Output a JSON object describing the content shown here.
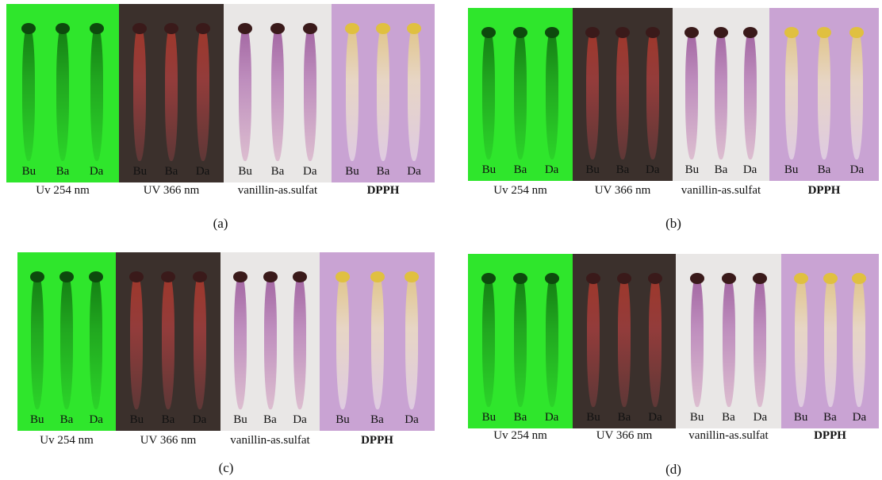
{
  "panels": [
    {
      "label": "(a)",
      "plates": [
        {
          "caption": "Uv 254 nm",
          "lanes": [
            "Bu",
            "Ba",
            "Da"
          ]
        },
        {
          "caption": "UV 366 nm",
          "lanes": [
            "Bu",
            "Ba",
            "Da"
          ]
        },
        {
          "caption": "vanillin-as.sulfat",
          "lanes": [
            "Bu",
            "Ba",
            "Da"
          ]
        },
        {
          "caption": "DPPH",
          "lanes": [
            "Bu",
            "Ba",
            "Da"
          ]
        }
      ]
    },
    {
      "label": "(b)",
      "plates": [
        {
          "caption": "Uv 254 nm",
          "lanes": [
            "Bu",
            "Ba",
            "Da"
          ]
        },
        {
          "caption": "UV 366 nm",
          "lanes": [
            "Bu",
            "Ba",
            "Da"
          ]
        },
        {
          "caption": "vanillin-as.sulfat",
          "lanes": [
            "Bu",
            "Ba",
            "Da"
          ]
        },
        {
          "caption": "DPPH",
          "lanes": [
            "Bu",
            "Ba",
            "Da"
          ]
        }
      ]
    },
    {
      "label": "(c)",
      "plates": [
        {
          "caption": "Uv 254 nm",
          "lanes": [
            "Bu",
            "Ba",
            "Da"
          ]
        },
        {
          "caption": "UV 366 nm",
          "lanes": [
            "Bu",
            "Ba",
            "Da"
          ]
        },
        {
          "caption": "vanillin-as.sulfat",
          "lanes": [
            "Bu",
            "Ba",
            "Da"
          ]
        },
        {
          "caption": "DPPH",
          "lanes": [
            "Bu",
            "Ba",
            "Da"
          ]
        }
      ]
    },
    {
      "label": "(d)",
      "plates": [
        {
          "caption": "Uv 254 nm",
          "lanes": [
            "Bu",
            "Ba",
            "Da"
          ]
        },
        {
          "caption": "UV 366 nm",
          "lanes": [
            "Bu",
            "Ba",
            "Da"
          ]
        },
        {
          "caption": "vanillin-as.sulfat",
          "lanes": [
            "Bu",
            "Ba",
            "Da"
          ]
        },
        {
          "caption": "DPPH",
          "lanes": [
            "Bu",
            "Ba",
            "Da"
          ]
        }
      ]
    }
  ]
}
